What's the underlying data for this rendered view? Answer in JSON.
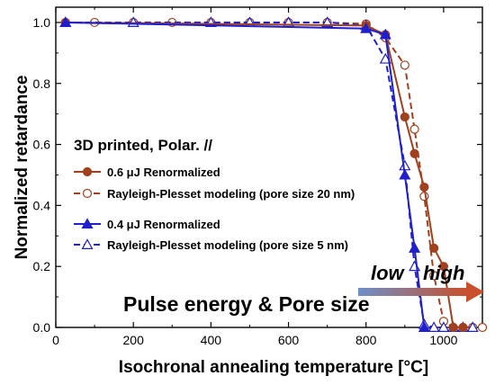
{
  "chart_data": {
    "type": "line",
    "xlabel": "Isochronal annealing temperature [°C]",
    "ylabel": "Normalized retardance",
    "xlim": [
      0,
      1100
    ],
    "ylim": [
      0,
      1.05
    ],
    "xticks": [
      0,
      200,
      400,
      600,
      800,
      1000
    ],
    "yticks": [
      0.0,
      0.2,
      0.4,
      0.6,
      0.8,
      1.0
    ],
    "x_tick_labels": [
      "0",
      "200",
      "400",
      "600",
      "800",
      "1000"
    ],
    "y_tick_labels": [
      "0.0",
      "0.2",
      "0.4",
      "0.6",
      "0.8",
      "1.0"
    ],
    "grid": false,
    "legend_position": "center-left",
    "annotations": {
      "condition": "3D printed, Polar. //",
      "pulse_pore": "Pulse energy & Pore size",
      "low": "low",
      "high": "high"
    },
    "series": [
      {
        "name": "0.6 μJ Renormalized",
        "color": "#a0401e",
        "line": "solid",
        "marker": "circle-filled",
        "x": [
          25,
          800,
          850,
          900,
          925,
          950,
          975,
          1000,
          1025,
          1050
        ],
        "y": [
          1.0,
          0.99,
          0.96,
          0.69,
          0.57,
          0.46,
          0.26,
          0.2,
          0.0,
          0.0
        ]
      },
      {
        "name": "Rayleigh-Plesset modeling (pore size 20 nm)",
        "color": "#a0401e",
        "line": "dashed",
        "marker": "circle-open",
        "x": [
          25,
          100,
          200,
          300,
          400,
          500,
          600,
          700,
          800,
          850,
          900,
          925,
          950,
          975,
          1000,
          1025,
          1050,
          1075,
          1100
        ],
        "y": [
          1.0,
          1.0,
          1.0,
          1.0,
          1.0,
          1.0,
          1.0,
          1.0,
          0.995,
          0.95,
          0.86,
          0.65,
          0.43,
          0.17,
          0.02,
          0.0,
          0.0,
          0.0,
          0.0
        ]
      },
      {
        "name": "0.4 μJ Renormalized",
        "color": "#1f1fcc",
        "line": "solid",
        "marker": "triangle-filled",
        "x": [
          25,
          800,
          850,
          900,
          925,
          950
        ],
        "y": [
          1.0,
          0.98,
          0.96,
          0.5,
          0.26,
          0.0
        ]
      },
      {
        "name": "Rayleigh-Plesset modeling (pore size 5 nm)",
        "color": "#1f1fcc",
        "line": "dashed",
        "marker": "triangle-open",
        "x": [
          25,
          200,
          400,
          500,
          600,
          700,
          800,
          850,
          900,
          925,
          950,
          975,
          1000,
          1025,
          1050,
          1075
        ],
        "y": [
          1.0,
          1.0,
          1.0,
          1.0,
          1.0,
          1.0,
          0.99,
          0.88,
          0.53,
          0.2,
          0.01,
          0.0,
          0.0,
          0.0,
          0.0,
          0.0
        ]
      }
    ]
  }
}
